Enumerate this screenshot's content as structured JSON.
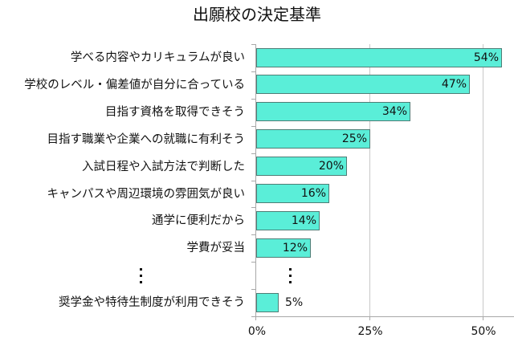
{
  "chart_data": {
    "type": "bar",
    "orientation": "horizontal",
    "title": "出願校の決定基準",
    "xlabel": "",
    "ylabel": "",
    "xlim": [
      0,
      55
    ],
    "x_ticks": [
      "0%",
      "25%",
      "50%"
    ],
    "grid": true,
    "legend": null,
    "categories": [
      "学べる内容やカリキュラムが良い",
      "学校のレベル・偏差値が自分に合っている",
      "目指す資格を取得できそう",
      "目指す職業や企業への就職に有利そう",
      "入試日程や入試方法で判断した",
      "キャンパスや周辺環境の雰囲気が良い",
      "通学に便利だから",
      "学費が妥当",
      "⋮",
      "奨学金や特待生制度が利用できそう"
    ],
    "values": [
      54,
      47,
      34,
      25,
      20,
      16,
      14,
      12,
      null,
      5
    ],
    "value_labels": [
      "54%",
      "47%",
      "34%",
      "25%",
      "20%",
      "16%",
      "14%",
      "12%",
      "⋮",
      "5%"
    ],
    "bar_color": "#5aeed8",
    "bar_border_color": "#4f7d76",
    "annotations": [
      "Ellipsis row indicates omitted categories between 学費が妥当 and 奨学金や特待生制度が利用できそう"
    ]
  },
  "title": "出願校の決定基準",
  "axis": {
    "x_tick_labels": [
      "0%",
      "25%",
      "50%"
    ]
  },
  "rows": [
    {
      "label": "学べる内容やカリキュラムが良い",
      "value": 54,
      "value_label": "54%"
    },
    {
      "label": "学校のレベル・偏差値が自分に合っている",
      "value": 47,
      "value_label": "47%"
    },
    {
      "label": "目指す資格を取得できそう",
      "value": 34,
      "value_label": "34%"
    },
    {
      "label": "目指す職業や企業への就職に有利そう",
      "value": 25,
      "value_label": "25%"
    },
    {
      "label": "入試日程や入試方法で判断した",
      "value": 20,
      "value_label": "20%"
    },
    {
      "label": "キャンパスや周辺環境の雰囲気が良い",
      "value": 16,
      "value_label": "16%"
    },
    {
      "label": "通学に便利だから",
      "value": 14,
      "value_label": "14%"
    },
    {
      "label": "学費が妥当",
      "value": 12,
      "value_label": "12%"
    },
    {
      "label": "",
      "value": null,
      "value_label": "",
      "ellipsis": true
    },
    {
      "label": "奨学金や特待生制度が利用できそう",
      "value": 5,
      "value_label": "5%"
    }
  ]
}
